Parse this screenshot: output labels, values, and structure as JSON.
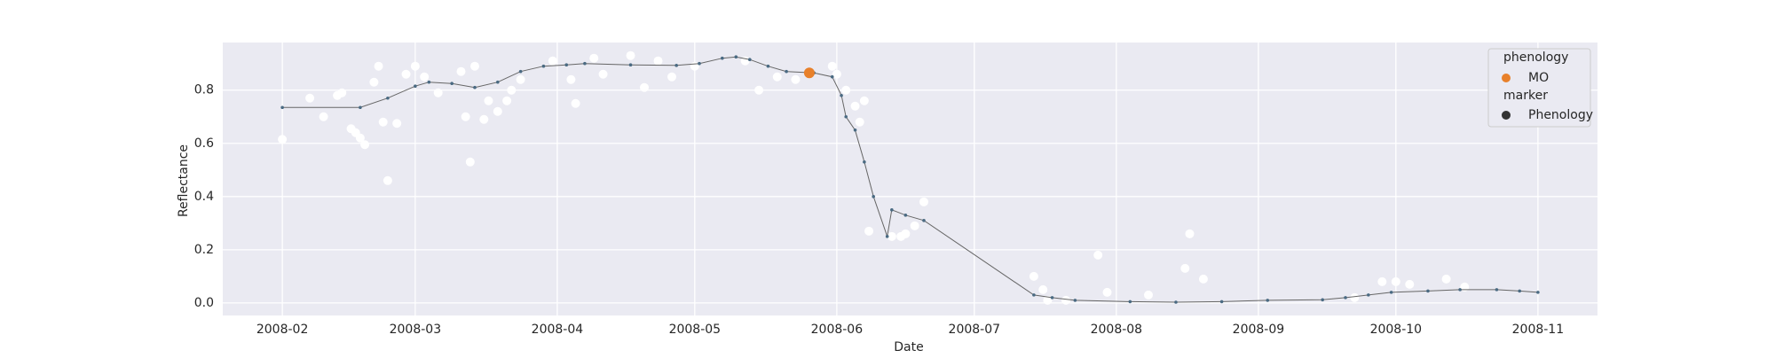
{
  "chart_data": {
    "type": "scatter",
    "x_label": "Date",
    "y_label": "Reflectance",
    "xlim": [
      "2008-01-19",
      "2008-11-14"
    ],
    "xticks": [
      {
        "value": "2008-02-01",
        "label": "2008-02"
      },
      {
        "value": "2008-03-01",
        "label": "2008-03"
      },
      {
        "value": "2008-04-01",
        "label": "2008-04"
      },
      {
        "value": "2008-05-01",
        "label": "2008-05"
      },
      {
        "value": "2008-06-01",
        "label": "2008-06"
      },
      {
        "value": "2008-07-01",
        "label": "2008-07"
      },
      {
        "value": "2008-08-01",
        "label": "2008-08"
      },
      {
        "value": "2008-09-01",
        "label": "2008-09"
      },
      {
        "value": "2008-10-01",
        "label": "2008-10"
      },
      {
        "value": "2008-11-01",
        "label": "2008-11"
      }
    ],
    "ylim": [
      -0.047,
      0.979
    ],
    "yticks": [
      {
        "value": 0,
        "label": "0.0"
      },
      0.2,
      0.4,
      0.6,
      0.8
    ],
    "grid": true,
    "legend": {
      "corner": "upper right",
      "title": "phenology",
      "marker_title": "marker",
      "marker_label": "Phenology",
      "marker_color": "#333333"
    },
    "series": [
      {
        "style": "scatter",
        "color": "#ffffff",
        "x": [
          "2008-02-01",
          "2008-02-07",
          "2008-02-10",
          "2008-02-13",
          "2008-02-14",
          "2008-02-16",
          "2008-02-17",
          "2008-02-18",
          "2008-02-19",
          "2008-02-21",
          "2008-02-22",
          "2008-02-23",
          "2008-02-24",
          "2008-02-26",
          "2008-02-28",
          "2008-03-01",
          "2008-03-03",
          "2008-03-06",
          "2008-03-11",
          "2008-03-12",
          "2008-03-13",
          "2008-03-14",
          "2008-03-16",
          "2008-03-17",
          "2008-03-19",
          "2008-03-21",
          "2008-03-22",
          "2008-03-24",
          "2008-03-31",
          "2008-04-04",
          "2008-04-05",
          "2008-04-09",
          "2008-04-11",
          "2008-04-17",
          "2008-04-20",
          "2008-04-23",
          "2008-04-26",
          "2008-05-01",
          "2008-05-12",
          "2008-05-15",
          "2008-05-19",
          "2008-05-23",
          "2008-05-31",
          "2008-06-01",
          "2008-06-03",
          "2008-06-05",
          "2008-06-06",
          "2008-06-07",
          "2008-06-08",
          "2008-06-13",
          "2008-06-15",
          "2008-06-16",
          "2008-06-18",
          "2008-06-20",
          "2008-07-14",
          "2008-07-16",
          "2008-07-17",
          "2008-07-21",
          "2008-07-28",
          "2008-07-30",
          "2008-08-08",
          "2008-08-16",
          "2008-08-17",
          "2008-08-20",
          "2008-09-22",
          "2008-09-28",
          "2008-10-01",
          "2008-10-04",
          "2008-10-12",
          "2008-10-16"
        ],
        "values": [
          0.615,
          0.77,
          0.7,
          0.78,
          0.79,
          0.655,
          0.64,
          0.62,
          0.595,
          0.83,
          0.89,
          0.68,
          0.46,
          0.675,
          0.86,
          0.89,
          0.85,
          0.79,
          0.87,
          0.7,
          0.53,
          0.89,
          0.69,
          0.76,
          0.72,
          0.76,
          0.8,
          0.84,
          0.91,
          0.84,
          0.75,
          0.92,
          0.86,
          0.93,
          0.81,
          0.91,
          0.85,
          0.89,
          0.91,
          0.8,
          0.85,
          0.84,
          0.89,
          0.86,
          0.8,
          0.74,
          0.68,
          0.76,
          0.27,
          0.25,
          0.25,
          0.26,
          0.29,
          0.38,
          0.1,
          0.05,
          0.01,
          0.01,
          0.18,
          0.04,
          0.03,
          0.13,
          0.26,
          0.09,
          0.02,
          0.08,
          0.08,
          0.07,
          0.09,
          0.06
        ]
      },
      {
        "style": "line",
        "color": "#4a6a82",
        "line_color": "#666666",
        "x": [
          "2008-02-01",
          "2008-02-18",
          "2008-02-24",
          "2008-03-01",
          "2008-03-04",
          "2008-03-09",
          "2008-03-14",
          "2008-03-19",
          "2008-03-24",
          "2008-03-29",
          "2008-04-03",
          "2008-04-07",
          "2008-04-17",
          "2008-04-27",
          "2008-05-02",
          "2008-05-07",
          "2008-05-10",
          "2008-05-13",
          "2008-05-17",
          "2008-05-21",
          "2008-05-27",
          "2008-05-31",
          "2008-06-02",
          "2008-06-03",
          "2008-06-05",
          "2008-06-07",
          "2008-06-09",
          "2008-06-12",
          "2008-06-13",
          "2008-06-16",
          "2008-06-20",
          "2008-07-14",
          "2008-07-18",
          "2008-07-23",
          "2008-08-04",
          "2008-08-14",
          "2008-08-24",
          "2008-09-03",
          "2008-09-15",
          "2008-09-20",
          "2008-09-25",
          "2008-09-30",
          "2008-10-08",
          "2008-10-15",
          "2008-10-23",
          "2008-10-28",
          "2008-11-01"
        ],
        "values": [
          0.735,
          0.735,
          0.77,
          0.815,
          0.83,
          0.825,
          0.81,
          0.83,
          0.87,
          0.89,
          0.895,
          0.9,
          0.895,
          0.893,
          0.9,
          0.92,
          0.925,
          0.915,
          0.89,
          0.87,
          0.865,
          0.85,
          0.78,
          0.7,
          0.65,
          0.53,
          0.4,
          0.25,
          0.35,
          0.33,
          0.31,
          0.03,
          0.02,
          0.01,
          0.005,
          0.003,
          0.005,
          0.01,
          0.012,
          0.02,
          0.03,
          0.04,
          0.045,
          0.05,
          0.05,
          0.045,
          0.04
        ]
      },
      {
        "style": "scatter",
        "name": "MO",
        "color": "#e8802a",
        "x": [
          "2008-05-26"
        ],
        "values": [
          0.865
        ]
      }
    ]
  }
}
